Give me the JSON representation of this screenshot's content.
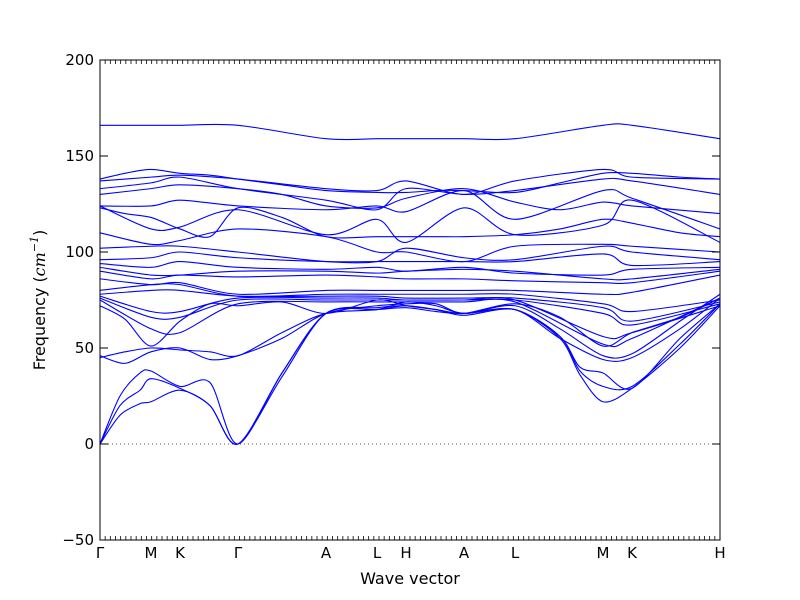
{
  "chart_data": {
    "type": "line",
    "title": "",
    "xlabel": "Wave vector",
    "ylabel_prefix": "Frequency (",
    "ylabel_unit": "cm",
    "ylabel_exp": "−1",
    "ylabel_suffix": ")",
    "ylim": [
      -50,
      200
    ],
    "yticks": [
      -50,
      0,
      50,
      100,
      150,
      200
    ],
    "ytick_labels": [
      "−50",
      "0",
      "50",
      "100",
      "150",
      "200"
    ],
    "zero_line": 0,
    "grid": false,
    "legend": "none",
    "line_color": "#0000ff",
    "zero_line_color": "#555555",
    "xlim": [
      0,
      620
    ],
    "high_symmetry_points": [
      {
        "label": "Γ",
        "x": 0
      },
      {
        "label": "M",
        "x": 51
      },
      {
        "label": "K",
        "x": 80
      },
      {
        "label": "Γ",
        "x": 138
      },
      {
        "label": "A",
        "x": 226
      },
      {
        "label": "L",
        "x": 277
      },
      {
        "label": "H",
        "x": 306
      },
      {
        "label": "A",
        "x": 364
      },
      {
        "label": "L",
        "x": 415
      },
      {
        "label": "M",
        "x": 503
      },
      {
        "label": "K",
        "x": 532
      },
      {
        "label": "H",
        "x": 620
      }
    ],
    "series": [
      {
        "x": [
          0,
          51,
          80,
          138,
          226,
          277,
          306,
          364,
          415,
          503,
          532,
          620
        ],
        "values": [
          166,
          166,
          166,
          166,
          159,
          159,
          159,
          159,
          159,
          166,
          166,
          159
        ]
      },
      {
        "x": [
          0,
          25,
          51,
          80,
          110,
          138,
          182,
          226,
          277,
          306,
          336,
          364,
          415,
          460,
          503,
          532,
          580,
          620
        ],
        "values": [
          138,
          141,
          143,
          141,
          140,
          138,
          135,
          132,
          131,
          131,
          132,
          132,
          131,
          136,
          141,
          141,
          139,
          138
        ]
      },
      {
        "x": [
          0,
          51,
          80,
          138,
          226,
          277,
          306,
          364,
          415,
          503,
          532,
          620
        ],
        "values": [
          137,
          139,
          140,
          138,
          133,
          132,
          137,
          130,
          137,
          143,
          139,
          138
        ]
      },
      {
        "x": [
          0,
          51,
          80,
          138,
          226,
          277,
          306,
          364,
          415,
          503,
          532,
          620
        ],
        "values": [
          133,
          136,
          139,
          133,
          127,
          122,
          133,
          130,
          132,
          138,
          137,
          130
        ]
      },
      {
        "x": [
          0,
          51,
          80,
          138,
          182,
          226,
          277,
          306,
          364,
          415,
          460,
          503,
          532,
          620
        ],
        "values": [
          130,
          133,
          135,
          133,
          130,
          124,
          123,
          128,
          133,
          126,
          122,
          126,
          124,
          120
        ]
      },
      {
        "x": [
          0,
          51,
          80,
          138,
          226,
          277,
          306,
          364,
          415,
          503,
          532,
          620
        ],
        "values": [
          124,
          124,
          127,
          124,
          122,
          124,
          121,
          132,
          117,
          132,
          128,
          112
        ]
      },
      {
        "x": [
          0,
          25,
          51,
          80,
          110,
          138,
          182,
          226,
          277,
          306,
          336,
          364,
          415,
          460,
          503,
          532,
          580,
          620
        ],
        "values": [
          123,
          120,
          118,
          112,
          108,
          123,
          118,
          108,
          108,
          108,
          108,
          108,
          109,
          112,
          117,
          115,
          110,
          108
        ]
      },
      {
        "x": [
          0,
          51,
          80,
          138,
          226,
          277,
          306,
          364,
          415,
          503,
          532,
          620
        ],
        "values": [
          124,
          112,
          113,
          122,
          109,
          117,
          105,
          123,
          109,
          114,
          127,
          105
        ]
      },
      {
        "x": [
          0,
          51,
          80,
          138,
          226,
          277,
          306,
          364,
          415,
          503,
          532,
          620
        ],
        "values": [
          110,
          104,
          106,
          112,
          108,
          100,
          100,
          95,
          103,
          104,
          103,
          100
        ]
      },
      {
        "x": [
          0,
          51,
          80,
          138,
          226,
          277,
          306,
          364,
          415,
          503,
          532,
          620
        ],
        "values": [
          102,
          103,
          103,
          100,
          95,
          95,
          102,
          97,
          96,
          103,
          100,
          96
        ]
      },
      {
        "x": [
          0,
          51,
          80,
          138,
          226,
          277,
          306,
          364,
          415,
          503,
          532,
          620
        ],
        "values": [
          96,
          97,
          100,
          97,
          95,
          95,
          95,
          95,
          95,
          99,
          93,
          95
        ]
      },
      {
        "x": [
          0,
          51,
          80,
          138,
          226,
          277,
          306,
          364,
          415,
          503,
          532,
          620
        ],
        "values": [
          94,
          92,
          95,
          92,
          91,
          92,
          90,
          92,
          89,
          88,
          91,
          92
        ]
      },
      {
        "x": [
          0,
          51,
          80,
          138,
          226,
          277,
          306,
          364,
          415,
          503,
          532,
          620
        ],
        "values": [
          92,
          88,
          88,
          90,
          90,
          89,
          90,
          91,
          90,
          86,
          86,
          91
        ]
      },
      {
        "x": [
          0,
          51,
          80,
          138,
          226,
          277,
          306,
          364,
          415,
          503,
          532,
          620
        ],
        "values": [
          90,
          86,
          88,
          87,
          88,
          87,
          86,
          86,
          85,
          84,
          84,
          90
        ]
      },
      {
        "x": [
          0,
          51,
          80,
          138,
          226,
          277,
          306,
          364,
          415,
          503,
          532,
          620
        ],
        "values": [
          86,
          83,
          84,
          78,
          80,
          80,
          80,
          80,
          80,
          78,
          79,
          88
        ]
      },
      {
        "x": [
          0,
          51,
          80,
          138,
          226,
          277,
          306,
          364,
          415,
          503,
          532,
          620
        ],
        "values": [
          80,
          83,
          83,
          77,
          78,
          78,
          78,
          78,
          78,
          73,
          69,
          75
        ]
      },
      {
        "x": [
          0,
          51,
          80,
          138,
          226,
          277,
          306,
          364,
          415,
          503,
          532,
          620
        ],
        "values": [
          78,
          80,
          80,
          77,
          77,
          77,
          76,
          76,
          76,
          71,
          64,
          74
        ]
      },
      {
        "x": [
          0,
          51,
          80,
          138,
          226,
          277,
          306,
          364,
          415,
          503,
          532,
          620
        ],
        "values": [
          77,
          69,
          69,
          76,
          76,
          76,
          75,
          75,
          75,
          68,
          62,
          73
        ]
      },
      {
        "x": [
          0,
          51,
          80,
          138,
          226,
          277,
          306,
          364,
          415,
          503,
          532,
          620
        ],
        "values": [
          76,
          66,
          66,
          75,
          75,
          75,
          75,
          75,
          75,
          56,
          58,
          72
        ]
      },
      {
        "x": [
          0,
          51,
          80,
          138,
          226,
          277,
          306,
          364,
          415,
          503,
          532,
          620
        ],
        "values": [
          75,
          60,
          58,
          73,
          74,
          74,
          74,
          74,
          74,
          52,
          55,
          76
        ]
      },
      {
        "x": [
          0,
          25,
          51,
          80,
          110,
          138,
          182,
          226,
          277,
          306,
          336,
          364,
          415,
          460,
          503,
          532,
          580,
          620
        ],
        "values": [
          72,
          65,
          51,
          64,
          73,
          72,
          74,
          68,
          75,
          72,
          70,
          68,
          73,
          66,
          51,
          58,
          66,
          76
        ]
      },
      {
        "x": [
          0,
          25,
          51,
          80,
          110,
          138,
          182,
          226,
          277,
          306,
          336,
          364,
          415,
          460,
          503,
          532,
          580,
          620
        ],
        "values": [
          46,
          42,
          48,
          50,
          44,
          46,
          55,
          68,
          72,
          73,
          73,
          68,
          72,
          60,
          46,
          47,
          64,
          78
        ]
      },
      {
        "x": [
          0,
          25,
          51,
          80,
          110,
          138,
          182,
          226,
          277,
          306,
          336,
          364,
          415,
          460,
          503,
          532,
          580,
          620
        ],
        "values": [
          45,
          48,
          50,
          49,
          48,
          46,
          58,
          68,
          70,
          74,
          72,
          68,
          70,
          55,
          44,
          45,
          60,
          76
        ]
      },
      {
        "x": [
          0,
          20,
          40,
          51,
          80,
          110,
          138,
          182,
          226,
          277,
          306,
          336,
          364,
          415,
          460,
          480,
          503,
          532,
          580,
          620
        ],
        "values": [
          0,
          25,
          37,
          38,
          30,
          32,
          0,
          37,
          68,
          71,
          72,
          70,
          67,
          70,
          56,
          40,
          37,
          29,
          55,
          73
        ]
      },
      {
        "x": [
          0,
          20,
          40,
          51,
          80,
          110,
          138,
          182,
          226,
          277,
          306,
          336,
          364,
          415,
          460,
          480,
          503,
          532,
          580,
          620
        ],
        "values": [
          0,
          20,
          28,
          34,
          29,
          20,
          0,
          37,
          68,
          70,
          72,
          70,
          68,
          70,
          56,
          38,
          30,
          30,
          52,
          73
        ]
      },
      {
        "x": [
          0,
          20,
          40,
          51,
          80,
          110,
          138,
          182,
          226,
          277,
          306,
          336,
          364,
          415,
          460,
          480,
          503,
          532,
          580,
          620
        ],
        "values": [
          0,
          15,
          21,
          22,
          28,
          20,
          0,
          35,
          68,
          70,
          71,
          69,
          68,
          70,
          55,
          36,
          22,
          29,
          50,
          72
        ]
      }
    ]
  }
}
